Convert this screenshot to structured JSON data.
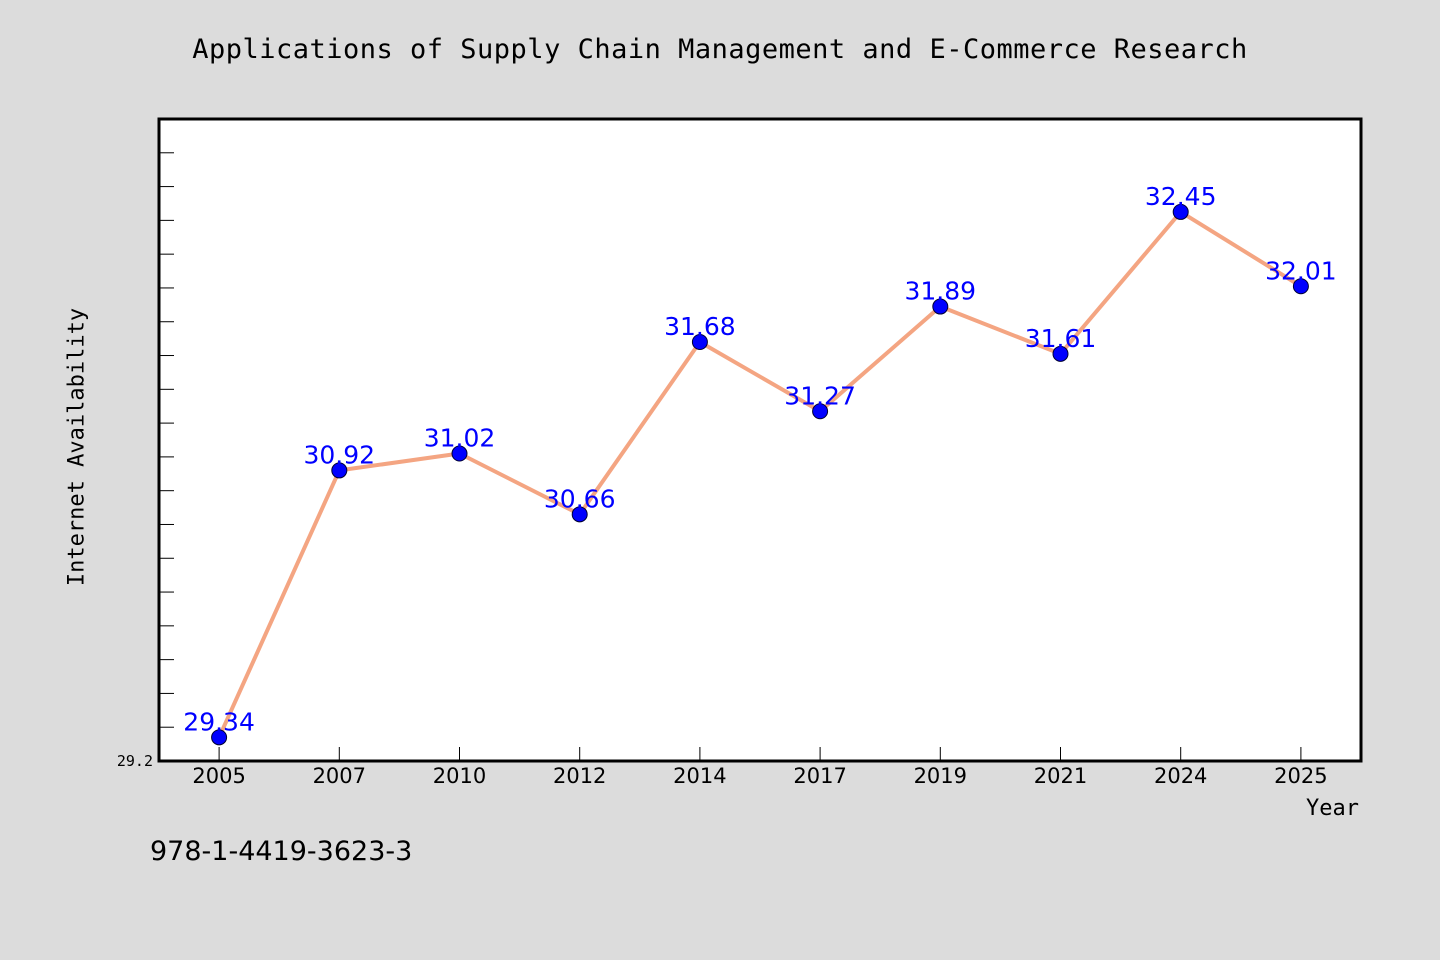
{
  "chart_data": {
    "type": "line",
    "title": "Applications of Supply Chain Management and E-Commerce Research",
    "xlabel": "Year",
    "ylabel": "Internet Availability",
    "categories": [
      "2005",
      "2007",
      "2010",
      "2012",
      "2014",
      "2017",
      "2019",
      "2021",
      "2024",
      "2025"
    ],
    "series": [
      {
        "values": [
          29.34,
          30.92,
          31.02,
          30.66,
          31.68,
          31.27,
          31.89,
          31.61,
          32.45,
          32.01
        ],
        "labels": [
          "29.34",
          "30.92",
          "31.02",
          "30.66",
          "31.68",
          "31.27",
          "31.89",
          "31.61",
          "32.45",
          "32.01"
        ]
      }
    ],
    "ylim": [
      29.2,
      33.0
    ],
    "yticks": [
      "29.2"
    ],
    "grid": false,
    "colors": {
      "line": "#f4a582",
      "marker": "#0000ff",
      "data_label": "#0000ff",
      "background": "#dcdcdc",
      "plot_background": "#ffffff"
    }
  },
  "footer_text": "978-1-4419-3623-3"
}
